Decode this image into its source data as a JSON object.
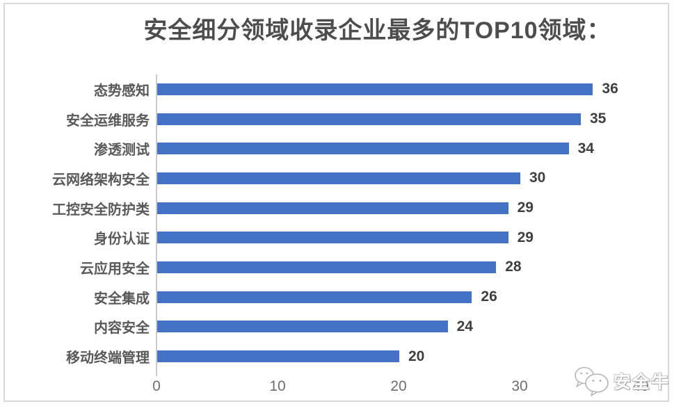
{
  "chart_data": {
    "type": "bar",
    "orientation": "horizontal",
    "title": "安全细分领域收录企业最多的TOP10领域：",
    "categories": [
      "态势感知",
      "安全运维服务",
      "渗透测试",
      "云网络架构安全",
      "工控安全防护类",
      "身份认证",
      "云应用安全",
      "安全集成",
      "内容安全",
      "移动终端管理"
    ],
    "values": [
      36,
      35,
      34,
      30,
      29,
      29,
      28,
      26,
      24,
      20
    ],
    "xlim": [
      0,
      40
    ],
    "x_ticks": [
      0,
      10,
      20,
      30,
      40
    ],
    "grid": "off",
    "legend": "none",
    "value_labels": "end-of-bar",
    "bar_color": "#4472c4",
    "title_color": "#4d4d4d",
    "label_color": "#595959",
    "value_label_color": "#3f3f3f",
    "axis_color": "#c9c9c9"
  },
  "watermark": {
    "label": "安全牛",
    "icon": "wechat-chat-bubbles-icon"
  }
}
